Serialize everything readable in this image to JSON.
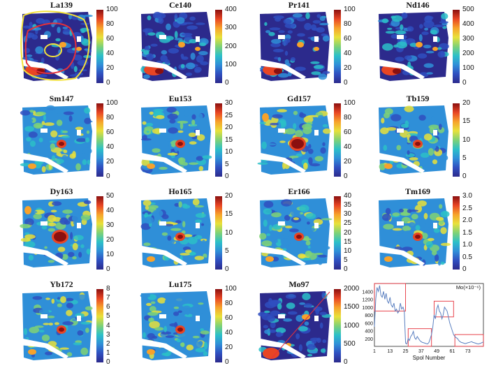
{
  "panels": [
    {
      "title": "La139",
      "ticks": [
        "100",
        "80",
        "60",
        "40",
        "20",
        "0"
      ],
      "variant": 0
    },
    {
      "title": "Ce140",
      "ticks": [
        "400",
        "300",
        "200",
        "100",
        "0"
      ],
      "variant": 0
    },
    {
      "title": "Pr141",
      "ticks": [
        "100",
        "80",
        "60",
        "40",
        "20",
        "0"
      ],
      "variant": 0
    },
    {
      "title": "Nd146",
      "ticks": [
        "500",
        "400",
        "300",
        "200",
        "100",
        "0"
      ],
      "variant": 0
    },
    {
      "title": "Sm147",
      "ticks": [
        "100",
        "80",
        "60",
        "40",
        "20",
        "0"
      ],
      "variant": 1
    },
    {
      "title": "Eu153",
      "ticks": [
        "30",
        "25",
        "20",
        "15",
        "10",
        "5",
        "0"
      ],
      "variant": 1
    },
    {
      "title": "Gd157",
      "ticks": [
        "100",
        "80",
        "60",
        "40",
        "20",
        "0"
      ],
      "variant": 2
    },
    {
      "title": "Tb159",
      "ticks": [
        "20",
        "15",
        "10",
        "5",
        "0"
      ],
      "variant": 1
    },
    {
      "title": "Dy163",
      "ticks": [
        "50",
        "40",
        "30",
        "20",
        "10",
        "0"
      ],
      "variant": 2
    },
    {
      "title": "Ho165",
      "ticks": [
        "20",
        "15",
        "10",
        "5",
        "0"
      ],
      "variant": 1
    },
    {
      "title": "Er166",
      "ticks": [
        "40",
        "35",
        "30",
        "25",
        "20",
        "15",
        "10",
        "5",
        "0"
      ],
      "variant": 1
    },
    {
      "title": "Tm169",
      "ticks": [
        "3.0",
        "2.5",
        "2.0",
        "1.5",
        "1.0",
        "0.5",
        "0"
      ],
      "variant": 1
    },
    {
      "title": "Yb172",
      "ticks": [
        "8",
        "7",
        "6",
        "5",
        "4",
        "3",
        "2",
        "1",
        "0"
      ],
      "variant": 1
    },
    {
      "title": "Lu175",
      "ticks": [
        "100",
        "80",
        "60",
        "40",
        "20",
        "0"
      ],
      "variant": 1
    },
    {
      "title": "Mo97",
      "ticks": [
        "2000",
        "1500",
        "1000",
        "500",
        "0"
      ],
      "variant": 3
    }
  ],
  "colors": {
    "scale": [
      "#2c2a8c",
      "#2f4fc0",
      "#2f8fd8",
      "#2cc0c8",
      "#7fd276",
      "#e8e13a",
      "#f7a22b",
      "#e84524",
      "#8a1010"
    ],
    "outline_yellow": "#f4e23a",
    "outline_red": "#e5303a",
    "chart_line": "#5a7fc0",
    "chart_box": "#e5303a"
  },
  "chart_data": {
    "type": "line",
    "title": "Mo(×10⁻⁶)",
    "xlabel": "Spol Number",
    "ylabel": "",
    "xlim": [
      1,
      85
    ],
    "ylim": [
      0,
      1600
    ],
    "x_ticks": [
      "1",
      "13",
      "25",
      "37",
      "49",
      "61",
      "73"
    ],
    "y_ticks": [
      "200",
      "400",
      "600",
      "800",
      "1000",
      "1200",
      "1400"
    ],
    "series": [
      {
        "x": [
          1,
          2,
          3,
          4,
          5,
          6,
          7,
          8,
          9,
          10,
          11,
          12,
          13,
          14,
          15,
          16,
          17,
          18,
          19,
          20,
          21,
          22,
          23,
          24,
          25,
          26,
          27,
          28,
          29,
          30,
          31,
          32,
          33,
          34,
          35,
          36,
          37,
          38,
          39,
          40,
          41,
          42,
          43,
          44,
          45,
          46,
          47,
          48,
          49,
          50,
          51,
          52,
          53,
          54,
          55,
          56,
          57,
          58,
          59,
          60,
          61,
          62,
          63,
          64,
          65,
          66,
          67,
          68,
          69,
          70,
          71,
          72,
          73,
          74,
          75,
          76,
          77,
          78,
          79,
          80,
          81,
          82,
          83,
          84,
          85
        ],
        "y": [
          500,
          1200,
          1500,
          1400,
          1550,
          1300,
          1250,
          1400,
          1200,
          1350,
          1150,
          1100,
          1250,
          1050,
          1000,
          1100,
          900,
          950,
          850,
          900,
          1100,
          950,
          1000,
          900,
          80,
          60,
          200,
          150,
          250,
          300,
          380,
          220,
          180,
          250,
          200,
          150,
          120,
          100,
          90,
          80,
          70,
          60,
          100,
          200,
          300,
          500,
          800,
          700,
          950,
          1050,
          900,
          850,
          700,
          800,
          1000,
          950,
          900,
          750,
          600,
          500,
          400,
          300,
          250,
          220,
          200,
          150,
          120,
          100,
          90,
          80,
          70,
          80,
          90,
          100,
          110,
          120,
          100,
          90,
          80,
          70,
          60,
          70,
          80,
          100,
          110
        ]
      }
    ],
    "boxes": [
      {
        "x0": 1,
        "x1": 25,
        "y0": 900,
        "y1": 1600
      },
      {
        "x0": 27,
        "x1": 45,
        "y0": 0,
        "y1": 450
      },
      {
        "x0": 47,
        "x1": 62,
        "y0": 750,
        "y1": 1150
      },
      {
        "x0": 63,
        "x1": 85,
        "y0": 0,
        "y1": 300
      }
    ],
    "grid": false
  }
}
